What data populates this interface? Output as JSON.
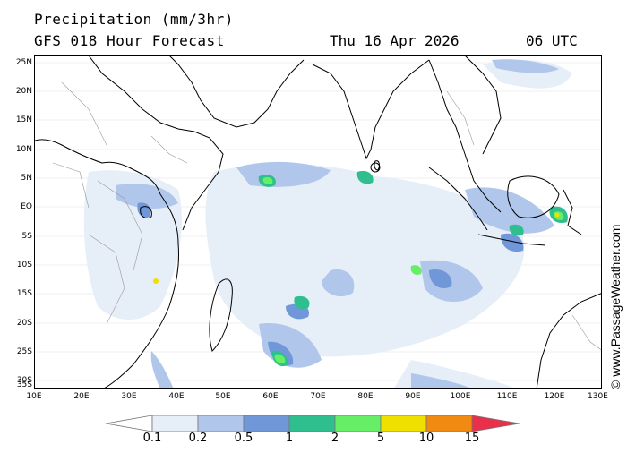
{
  "header": {
    "title": "Precipitation (mm/3hr)",
    "subtitle": "GFS 018 Hour Forecast",
    "date": "Thu 16 Apr 2026",
    "time": "06 UTC"
  },
  "map": {
    "lat_labels": [
      "25N",
      "20N",
      "15N",
      "10N",
      "5N",
      "EQ",
      "5S",
      "10S",
      "15S",
      "20S",
      "25S",
      "30S",
      "35S"
    ],
    "lon_labels": [
      "10E",
      "20E",
      "30E",
      "40E",
      "50E",
      "60E",
      "70E",
      "80E",
      "90E",
      "100E",
      "110E",
      "120E",
      "130E"
    ],
    "colors": {
      "land_outline": "#000000",
      "border": "#999999",
      "graticule": "#d0d0d0"
    }
  },
  "watermark": "© www.PassageWeather.com",
  "legend": {
    "labels": [
      "0.1",
      "0.2",
      "0.5",
      "1",
      "2",
      "5",
      "10",
      "15"
    ],
    "colors": [
      "#ffffff",
      "#e6eef8",
      "#b0c6ea",
      "#7097d8",
      "#2fbf8f",
      "#66ee66",
      "#f0e000",
      "#f08a10",
      "#e8304a"
    ]
  }
}
